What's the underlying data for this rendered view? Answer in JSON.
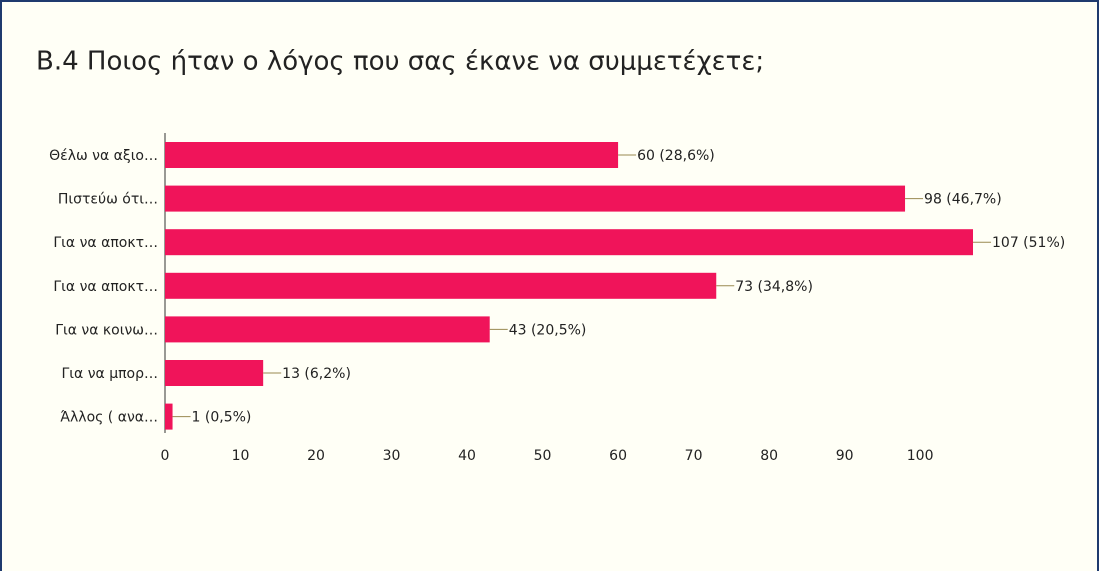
{
  "chart_data": {
    "type": "bar",
    "orientation": "horizontal",
    "title": "B.4 Ποιος ήταν ο λόγος που σας έκανε να συμμετέχετε;",
    "categories": [
      "Θέλω να αξιο…",
      "Πιστεύω ότι…",
      "Για να αποκτ…",
      "Για να αποκτ…",
      "Για να κοινω…",
      "Για να μπορ…",
      "Άλλος ( ανα…"
    ],
    "values": [
      60,
      98,
      107,
      73,
      43,
      13,
      1
    ],
    "value_labels": [
      "60 (28,6%)",
      "98 (46,7%)",
      "107 (51%)",
      "73 (34,8%)",
      "43 (20,5%)",
      "13 (6,2%)",
      "1 (0,5%)"
    ],
    "color": "#f0145a",
    "xlim": [
      0,
      107
    ],
    "xticks": [
      0,
      10,
      20,
      30,
      40,
      50,
      60,
      70,
      80,
      90,
      100
    ],
    "grid": false
  }
}
